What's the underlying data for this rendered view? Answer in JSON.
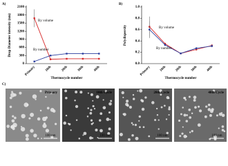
{
  "chart_data": [
    {
      "type": "line",
      "panel": "A)",
      "ylabel": "Drop Diameter intensity (nm)",
      "xlabel": "Thermocycle number",
      "categories": [
        "Primary",
        "10th",
        "20th",
        "30th",
        "40th"
      ],
      "ylim": [
        0,
        2100
      ],
      "yticks": [
        0,
        300,
        600,
        900,
        1200,
        1500,
        1800,
        2100
      ],
      "series": [
        {
          "name": "By volume",
          "color": "#d62728",
          "values": [
            1680,
            160,
            180,
            180,
            180
          ],
          "errors": [
            330,
            20,
            15,
            15,
            15
          ]
        },
        {
          "name": "By number",
          "color": "#2c3e9e",
          "values": [
            80,
            300,
            370,
            370,
            370
          ],
          "errors": [
            30,
            20,
            15,
            15,
            15
          ]
        }
      ]
    },
    {
      "type": "line",
      "panel": "B)",
      "ylabel": "Polydispersity",
      "xlabel": "Thermocycle number",
      "categories": [
        "Primary",
        "10th",
        "20th",
        "30th",
        "40th"
      ],
      "ylim": [
        0,
        1.0
      ],
      "yticks": [
        {
          "value": 0,
          "label": "0.0"
        },
        0.2,
        0.4,
        0.6,
        0.8,
        {
          "value": 1.0,
          "label": "1.0"
        }
      ],
      "series": [
        {
          "name": "By volume",
          "color": "#d62728",
          "values": [
            0.65,
            0.35,
            0.18,
            0.25,
            0.32
          ],
          "errors": [
            0.18,
            0.02,
            0.01,
            0.02,
            0.02
          ]
        },
        {
          "name": "By number",
          "color": "#2c3e9e",
          "values": [
            0.6,
            0.33,
            0.18,
            0.27,
            0.31
          ],
          "errors": [
            0.15,
            0.02,
            0.01,
            0.02,
            0.02
          ]
        }
      ]
    }
  ],
  "panel_c": {
    "label": "C)",
    "images": [
      {
        "caption": "Primary",
        "scale": "100 nm"
      },
      {
        "caption": "10th Cycle",
        "scale": "100 nm"
      },
      {
        "caption": "20th Cycle",
        "scale": "100 nm"
      },
      {
        "caption": "40th Cycle",
        "scale": "100 nm"
      }
    ]
  }
}
